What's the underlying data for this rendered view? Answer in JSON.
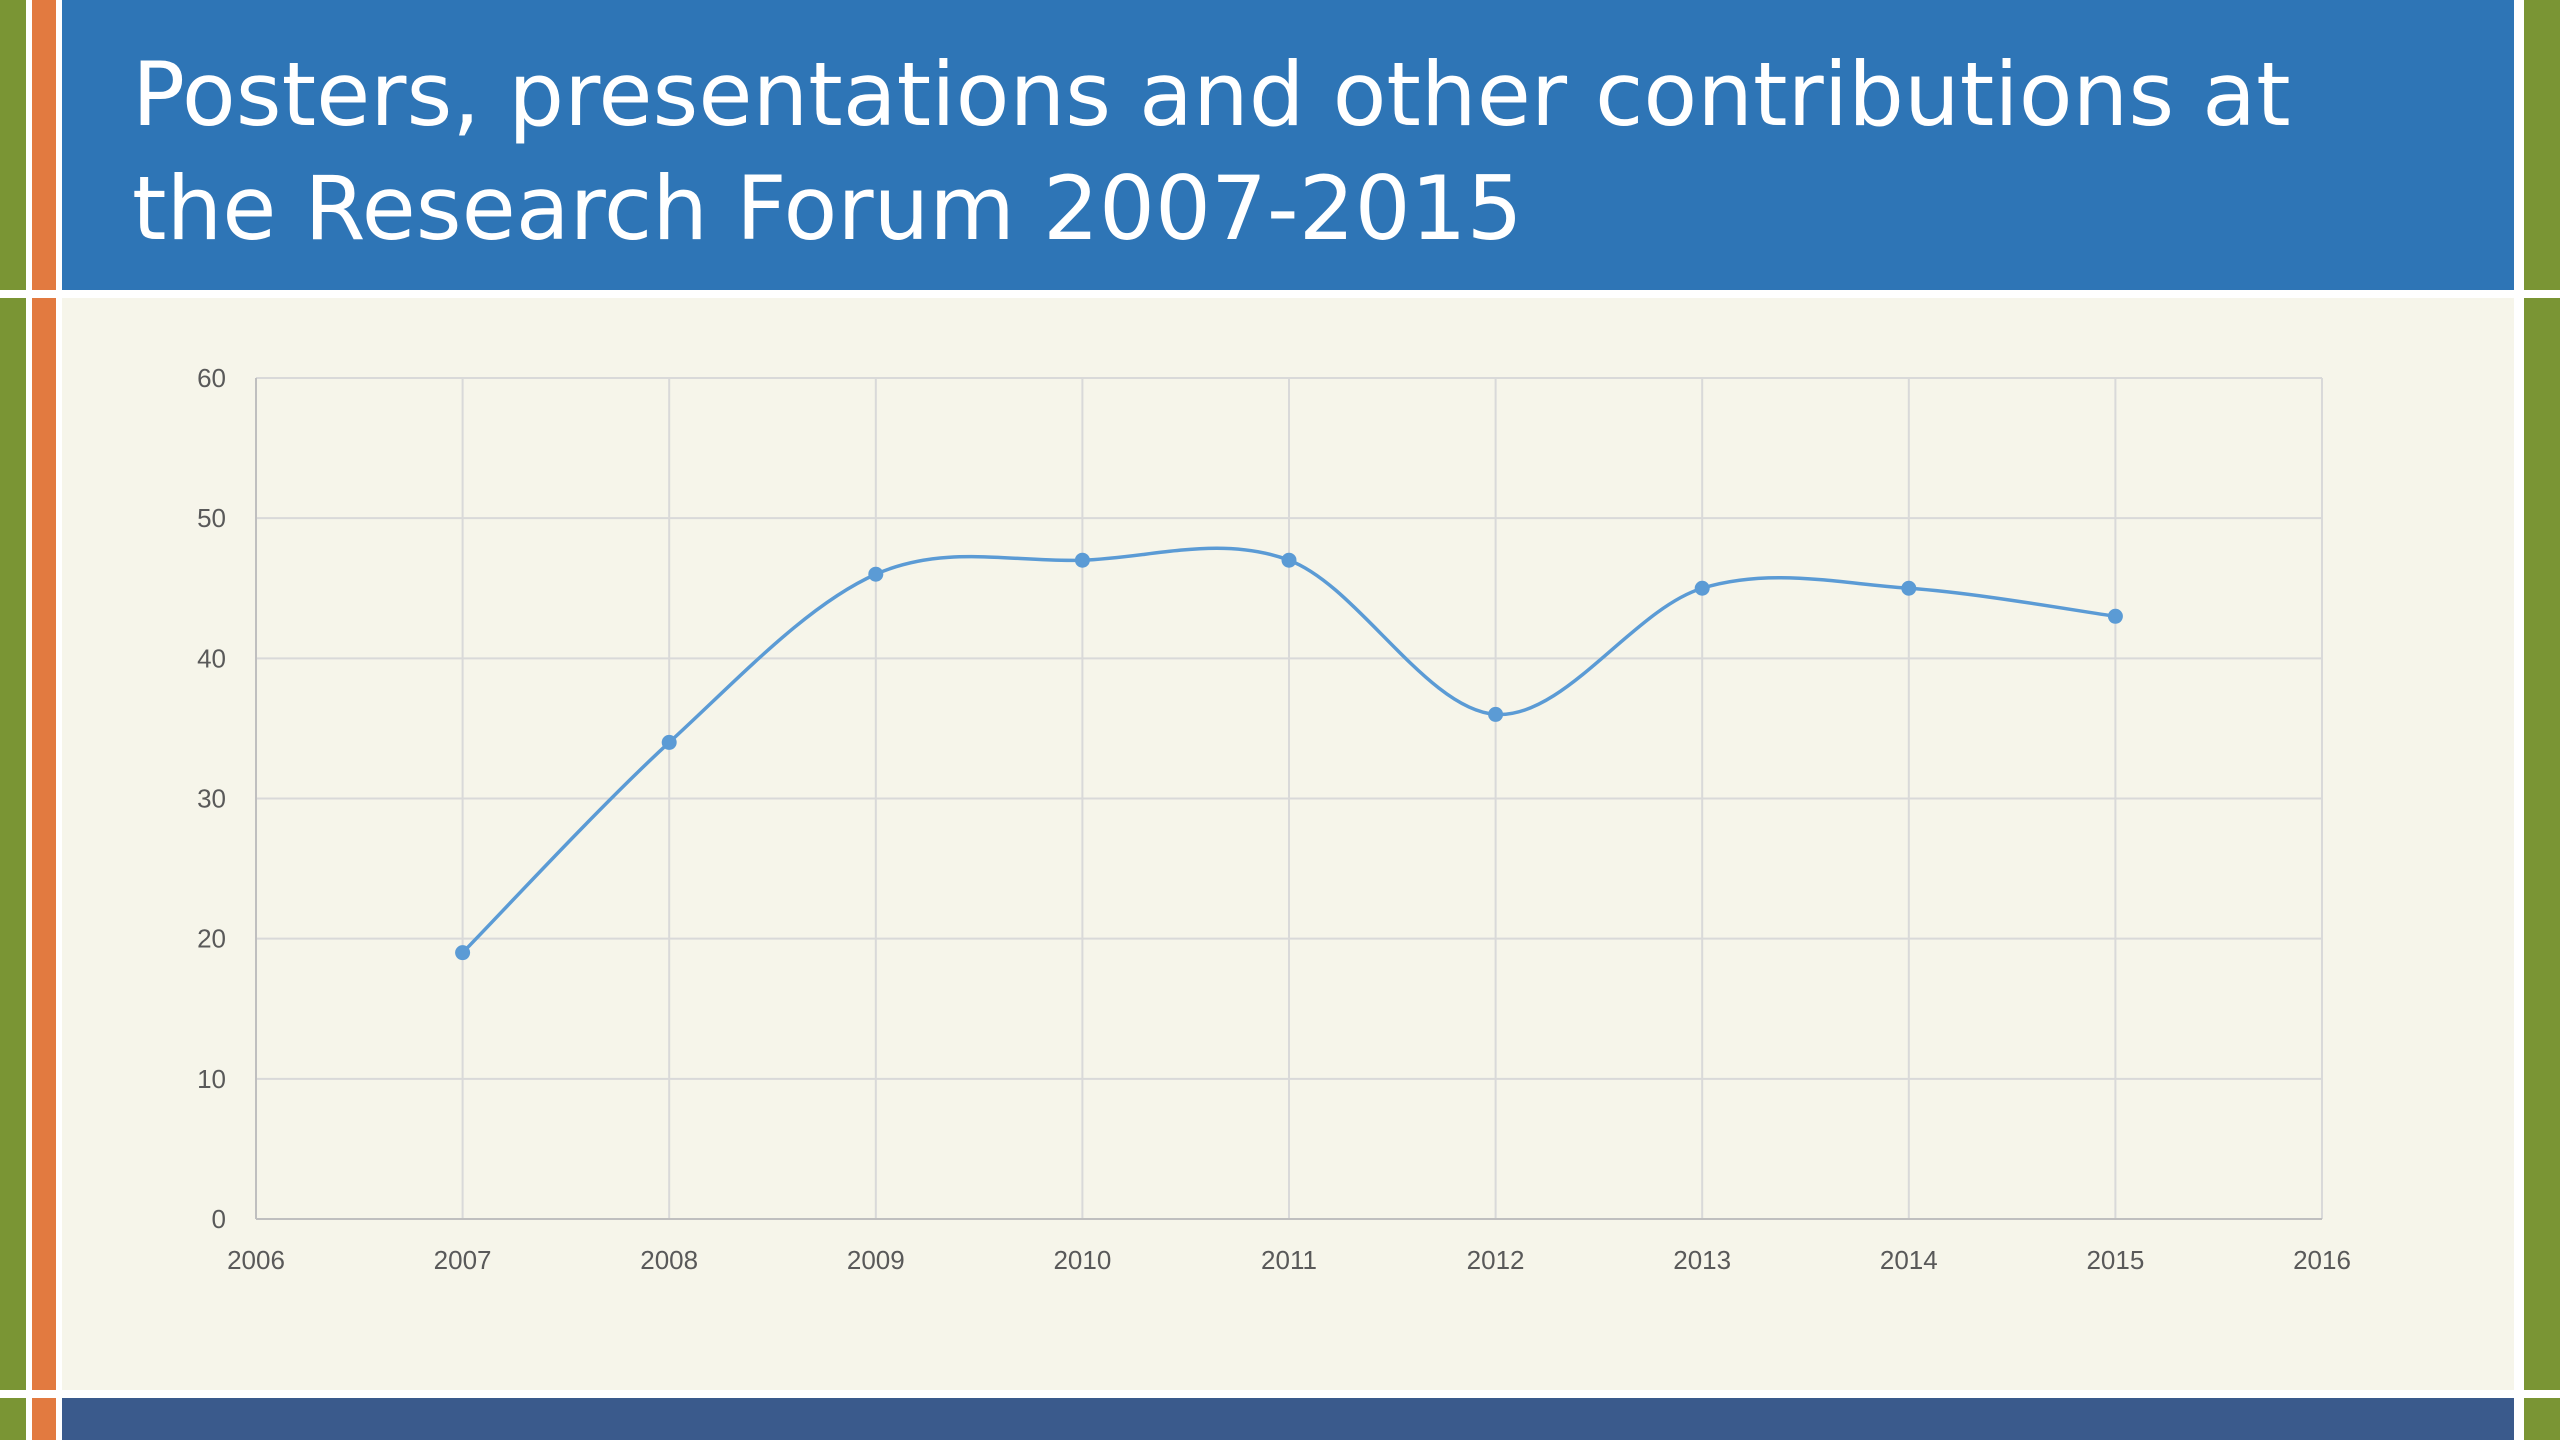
{
  "slide": {
    "title": "Posters, presentations and other contributions at the Research Forum 2007-2015"
  },
  "colors": {
    "title_bar": "#2e75b6",
    "accent_green": "#7a9534",
    "accent_orange": "#e27a40",
    "background": "#f6f5ea",
    "footer_bar": "#3a5a8c",
    "series_line": "#5b9bd5"
  },
  "chart_data": {
    "type": "scatter",
    "line_style": "smooth",
    "markers": true,
    "title": "",
    "xlabel": "",
    "ylabel": "",
    "xlim": [
      2006,
      2016
    ],
    "ylim": [
      0,
      60
    ],
    "x_ticks": [
      2006,
      2007,
      2008,
      2009,
      2010,
      2011,
      2012,
      2013,
      2014,
      2015,
      2016
    ],
    "y_ticks": [
      0,
      10,
      20,
      30,
      40,
      50,
      60
    ],
    "grid": true,
    "legend": "none",
    "series": [
      {
        "x": [
          2007,
          2008,
          2009,
          2010,
          2011,
          2012,
          2013,
          2014,
          2015
        ],
        "y": [
          19,
          34,
          46,
          47,
          47,
          36,
          45,
          45,
          43
        ]
      }
    ]
  }
}
